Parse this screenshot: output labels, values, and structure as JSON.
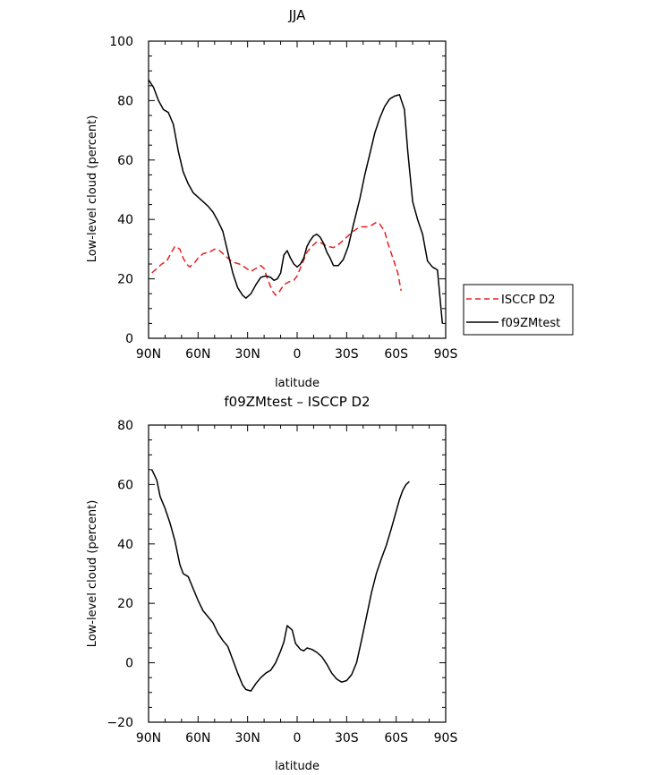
{
  "chart_data": [
    {
      "type": "line",
      "title": "JJA",
      "xlabel": "latitude",
      "ylabel": "Low-level cloud (percent)",
      "xlim": [
        90,
        -90
      ],
      "ylim": [
        0,
        100
      ],
      "x_tick_values": [
        90,
        60,
        30,
        0,
        -30,
        -60,
        -90
      ],
      "x_tick_labels": [
        "90N",
        "60N",
        "30N",
        "0",
        "30S",
        "60S",
        "90S"
      ],
      "y_ticks": [
        0,
        20,
        40,
        60,
        80,
        100
      ],
      "grid": false,
      "legend_position": "right",
      "series": [
        {
          "name": "ISCCP D2",
          "color": "#e8201e",
          "dash": "dashed",
          "points": [
            [
              88,
              22
            ],
            [
              85,
              23.5
            ],
            [
              82,
              25
            ],
            [
              79,
              26
            ],
            [
              76,
              29
            ],
            [
              74,
              31
            ],
            [
              71,
              30
            ],
            [
              69,
              27
            ],
            [
              67,
              25
            ],
            [
              65,
              24
            ],
            [
              62,
              25.5
            ],
            [
              60,
              27
            ],
            [
              57,
              28.5
            ],
            [
              53,
              29
            ],
            [
              50,
              30
            ],
            [
              47,
              29.5
            ],
            [
              44,
              28
            ],
            [
              41,
              26.5
            ],
            [
              38,
              25.5
            ],
            [
              35,
              25
            ],
            [
              32,
              24
            ],
            [
              28,
              22.5
            ],
            [
              25,
              23.5
            ],
            [
              22,
              24.5
            ],
            [
              20,
              23.5
            ],
            [
              18,
              20
            ],
            [
              15,
              16
            ],
            [
              13,
              14.5
            ],
            [
              11,
              15.5
            ],
            [
              8,
              18
            ],
            [
              5,
              19
            ],
            [
              2,
              19.5
            ],
            [
              0,
              21
            ],
            [
              -3,
              25
            ],
            [
              -6,
              29
            ],
            [
              -9,
              31
            ],
            [
              -12,
              32.5
            ],
            [
              -15,
              32
            ],
            [
              -18,
              31
            ],
            [
              -22,
              30.5
            ],
            [
              -26,
              32
            ],
            [
              -30,
              34
            ],
            [
              -34,
              36
            ],
            [
              -38,
              37.5
            ],
            [
              -42,
              37.5
            ],
            [
              -45,
              38
            ],
            [
              -48,
              39
            ],
            [
              -50,
              38.5
            ],
            [
              -53,
              36
            ],
            [
              -55,
              32
            ],
            [
              -58,
              27
            ],
            [
              -61,
              22
            ],
            [
              -63,
              16
            ]
          ]
        },
        {
          "name": "f09ZMtest",
          "color": "#000000",
          "dash": "solid",
          "points": [
            [
              90,
              87
            ],
            [
              87,
              84.5
            ],
            [
              84,
              80
            ],
            [
              81,
              77
            ],
            [
              78,
              76
            ],
            [
              75,
              72
            ],
            [
              72,
              63
            ],
            [
              69,
              56
            ],
            [
              66,
              52
            ],
            [
              63,
              49
            ],
            [
              60,
              47.5
            ],
            [
              57,
              46
            ],
            [
              54,
              44.5
            ],
            [
              51,
              42.5
            ],
            [
              48,
              39.5
            ],
            [
              45,
              36
            ],
            [
              42,
              29
            ],
            [
              39,
              22
            ],
            [
              36,
              17
            ],
            [
              33,
              14.5
            ],
            [
              31,
              13.5
            ],
            [
              28,
              15
            ],
            [
              25,
              18
            ],
            [
              22,
              20.5
            ],
            [
              19,
              21
            ],
            [
              16,
              20.5
            ],
            [
              14,
              19.5
            ],
            [
              12,
              20
            ],
            [
              10,
              22
            ],
            [
              8,
              28
            ],
            [
              6,
              29.5
            ],
            [
              4,
              27
            ],
            [
              2,
              25
            ],
            [
              0,
              24
            ],
            [
              -2,
              25
            ],
            [
              -4,
              27
            ],
            [
              -6,
              31
            ],
            [
              -8,
              33
            ],
            [
              -10,
              34.5
            ],
            [
              -12,
              35
            ],
            [
              -14,
              34
            ],
            [
              -16,
              32
            ],
            [
              -18,
              29
            ],
            [
              -20,
              27
            ],
            [
              -22,
              24.5
            ],
            [
              -25,
              24.5
            ],
            [
              -28,
              26.5
            ],
            [
              -31,
              31
            ],
            [
              -34,
              38
            ],
            [
              -38,
              47
            ],
            [
              -41,
              55
            ],
            [
              -44,
              62
            ],
            [
              -47,
              69
            ],
            [
              -50,
              74
            ],
            [
              -53,
              78
            ],
            [
              -56,
              80.5
            ],
            [
              -59,
              81.5
            ],
            [
              -62,
              82
            ],
            [
              -65,
              77
            ],
            [
              -67,
              63
            ],
            [
              -70,
              46
            ],
            [
              -73,
              40
            ],
            [
              -76,
              35
            ],
            [
              -79,
              26
            ],
            [
              -82,
              24
            ],
            [
              -85,
              23
            ],
            [
              -88,
              5
            ]
          ]
        }
      ]
    },
    {
      "type": "line",
      "title": "f09ZMtest – ISCCP D2",
      "xlabel": "latitude",
      "ylabel": "Low-level cloud (percent)",
      "xlim": [
        90,
        -90
      ],
      "ylim": [
        -20,
        80
      ],
      "x_tick_values": [
        90,
        60,
        30,
        0,
        -30,
        -60,
        -90
      ],
      "x_tick_labels": [
        "90N",
        "60N",
        "30N",
        "0",
        "30S",
        "60S",
        "90S"
      ],
      "y_ticks": [
        -20,
        0,
        20,
        40,
        60,
        80
      ],
      "grid": false,
      "series": [
        {
          "color": "#000000",
          "dash": "solid",
          "points": [
            [
              88,
              65
            ],
            [
              85,
              61.5
            ],
            [
              83,
              56
            ],
            [
              80,
              52
            ],
            [
              77,
              47
            ],
            [
              74,
              41
            ],
            [
              71,
              33
            ],
            [
              69,
              30
            ],
            [
              66,
              29
            ],
            [
              63,
              25
            ],
            [
              60,
              21
            ],
            [
              57,
              17.5
            ],
            [
              54,
              15.5
            ],
            [
              51,
              13.5
            ],
            [
              48,
              10
            ],
            [
              45,
              7.5
            ],
            [
              42,
              5.5
            ],
            [
              39,
              1
            ],
            [
              36,
              -3.5
            ],
            [
              33,
              -7.5
            ],
            [
              31,
              -9
            ],
            [
              28,
              -9.5
            ],
            [
              25,
              -7
            ],
            [
              22,
              -5
            ],
            [
              19,
              -3.5
            ],
            [
              16,
              -2.5
            ],
            [
              13,
              0
            ],
            [
              10,
              4
            ],
            [
              8,
              7
            ],
            [
              6,
              12.5
            ],
            [
              3,
              11
            ],
            [
              1,
              6.5
            ],
            [
              -2,
              4.5
            ],
            [
              -4,
              4
            ],
            [
              -6,
              5
            ],
            [
              -9,
              4.5
            ],
            [
              -12,
              3.5
            ],
            [
              -15,
              2
            ],
            [
              -18,
              -0.5
            ],
            [
              -21,
              -3.5
            ],
            [
              -24,
              -5.5
            ],
            [
              -27,
              -6.5
            ],
            [
              -30,
              -6
            ],
            [
              -33,
              -4
            ],
            [
              -36,
              0
            ],
            [
              -39,
              7.5
            ],
            [
              -42,
              15.5
            ],
            [
              -45,
              23.5
            ],
            [
              -48,
              30
            ],
            [
              -51,
              35
            ],
            [
              -54,
              39.5
            ],
            [
              -57,
              45
            ],
            [
              -60,
              51
            ],
            [
              -62,
              55
            ],
            [
              -64,
              58
            ],
            [
              -66,
              60
            ],
            [
              -68,
              61
            ]
          ]
        }
      ]
    }
  ]
}
